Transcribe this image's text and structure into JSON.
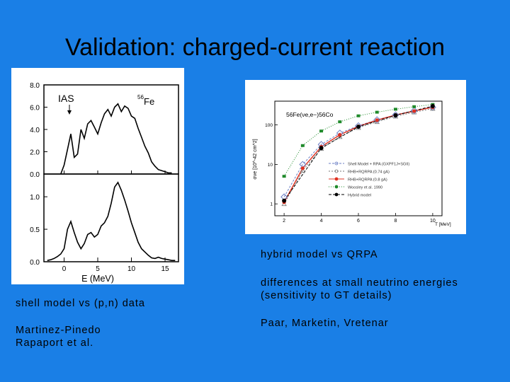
{
  "slide": {
    "title": "Validation: charged-current reaction",
    "captions": {
      "shell": "shell model vs (p,n) data",
      "author1": "Martinez-Pinedo",
      "author2": "Rapaport et al.",
      "hybrid": "hybrid model vs QRPA",
      "diff1": "differences at small neutrino energies",
      "diff2": "(sensitivity to GT details)",
      "paar": "Paar, Marketin, Vretenar"
    }
  },
  "chart_data": [
    {
      "type": "line",
      "title": "",
      "xlabel": "E (MeV)",
      "x_ticks": [
        "0",
        "5",
        "10",
        "15"
      ],
      "xlim": [
        -3,
        17
      ],
      "top_panel": {
        "ylabel": "",
        "y_ticks": [
          "0.0",
          "2.0",
          "4.0",
          "6.0",
          "8.0"
        ],
        "ylim": [
          0,
          8
        ],
        "annotations": [
          "IAS",
          "56",
          "Fe"
        ],
        "series": [
          {
            "name": "(p,n) data",
            "x": [
              -0.5,
              0.0,
              0.5,
              1.0,
              1.5,
              2.0,
              2.5,
              3.0,
              3.5,
              4.0,
              4.5,
              5.0,
              5.5,
              6.0,
              6.5,
              7.0,
              7.5,
              8.0,
              8.5,
              9.0,
              9.5,
              10.0,
              10.5,
              11.0,
              11.5,
              12.0,
              12.5,
              13.0,
              13.5,
              14.0,
              14.5,
              15.0,
              15.5,
              16.0
            ],
            "y": [
              0.0,
              0.8,
              2.2,
              3.6,
              1.5,
              1.8,
              4.0,
              3.2,
              4.5,
              4.8,
              4.2,
              3.6,
              4.6,
              5.4,
              5.8,
              5.2,
              6.0,
              6.3,
              5.6,
              6.1,
              5.9,
              5.2,
              5.0,
              4.1,
              3.3,
              2.5,
              1.9,
              1.1,
              0.7,
              0.4,
              0.3,
              0.2,
              0.1,
              0.1
            ]
          }
        ]
      },
      "bottom_panel": {
        "ylabel": "",
        "y_ticks": [
          "0.0",
          "0.5",
          "1.0"
        ],
        "ylim": [
          0,
          1.35
        ],
        "series": [
          {
            "name": "shell model",
            "x": [
              -2.5,
              -2.0,
              -1.5,
              -1.0,
              -0.5,
              0.0,
              0.5,
              1.0,
              1.5,
              2.0,
              2.5,
              3.0,
              3.5,
              4.0,
              4.5,
              5.0,
              5.5,
              6.0,
              6.5,
              7.0,
              7.5,
              8.0,
              8.5,
              9.0,
              9.5,
              10.0,
              10.5,
              11.0,
              11.5,
              12.0,
              12.5,
              13.0,
              13.5,
              14.0,
              14.5,
              15.0,
              15.5,
              16.0,
              16.5
            ],
            "y": [
              0.02,
              0.03,
              0.05,
              0.08,
              0.12,
              0.2,
              0.5,
              0.62,
              0.45,
              0.3,
              0.2,
              0.28,
              0.42,
              0.45,
              0.38,
              0.42,
              0.55,
              0.6,
              0.7,
              0.9,
              1.15,
              1.22,
              1.1,
              0.95,
              0.78,
              0.6,
              0.45,
              0.3,
              0.2,
              0.15,
              0.1,
              0.06,
              0.05,
              0.07,
              0.05,
              0.04,
              0.03,
              0.02,
              0.02
            ]
          }
        ]
      }
    },
    {
      "type": "line",
      "title": "56Fe(νe,e−)56Co",
      "xlabel": "T [MeV]",
      "ylabel": "σνe [10^-42 cm^2]",
      "y_scale": "log",
      "x_ticks": [
        "2",
        "4",
        "6",
        "8",
        "10"
      ],
      "y_ticks": [
        "1",
        "10",
        "100"
      ],
      "xlim": [
        1.5,
        10.5
      ],
      "ylim": [
        0.5,
        400
      ],
      "legend_position": "lower-right",
      "series": [
        {
          "name": "Shell Model + RPA (GXPF1J+SGII)",
          "color": "#6b7fc4",
          "x": [
            2,
            3,
            4,
            5,
            6,
            7,
            8,
            9,
            10
          ],
          "y": [
            1.5,
            10,
            32,
            62,
            95,
            135,
            180,
            230,
            280
          ]
        },
        {
          "name": "RHB+RQRPA (0.74 gA)",
          "color": "#777777",
          "x": [
            2,
            3,
            4,
            5,
            6,
            7,
            8,
            9,
            10
          ],
          "y": [
            1.0,
            7,
            25,
            50,
            85,
            120,
            165,
            210,
            260
          ]
        },
        {
          "name": "RHB+RQRPA (0.8 gA)",
          "color": "#e03020",
          "x": [
            2,
            3,
            4,
            5,
            6,
            7,
            8,
            9,
            10
          ],
          "y": [
            1.1,
            8,
            28,
            56,
            92,
            132,
            178,
            225,
            280
          ]
        },
        {
          "name": "Woosley et al. 1990",
          "color": "#1f8a2a",
          "x": [
            2,
            3,
            4,
            5,
            6,
            7,
            8,
            9,
            10
          ],
          "y": [
            5,
            30,
            70,
            120,
            170,
            210,
            250,
            290,
            330
          ]
        },
        {
          "name": "Hybrid model",
          "color": "#000000",
          "x": [
            2,
            4,
            6,
            8,
            10
          ],
          "y": [
            1.2,
            26,
            90,
            175,
            300
          ]
        }
      ]
    }
  ]
}
